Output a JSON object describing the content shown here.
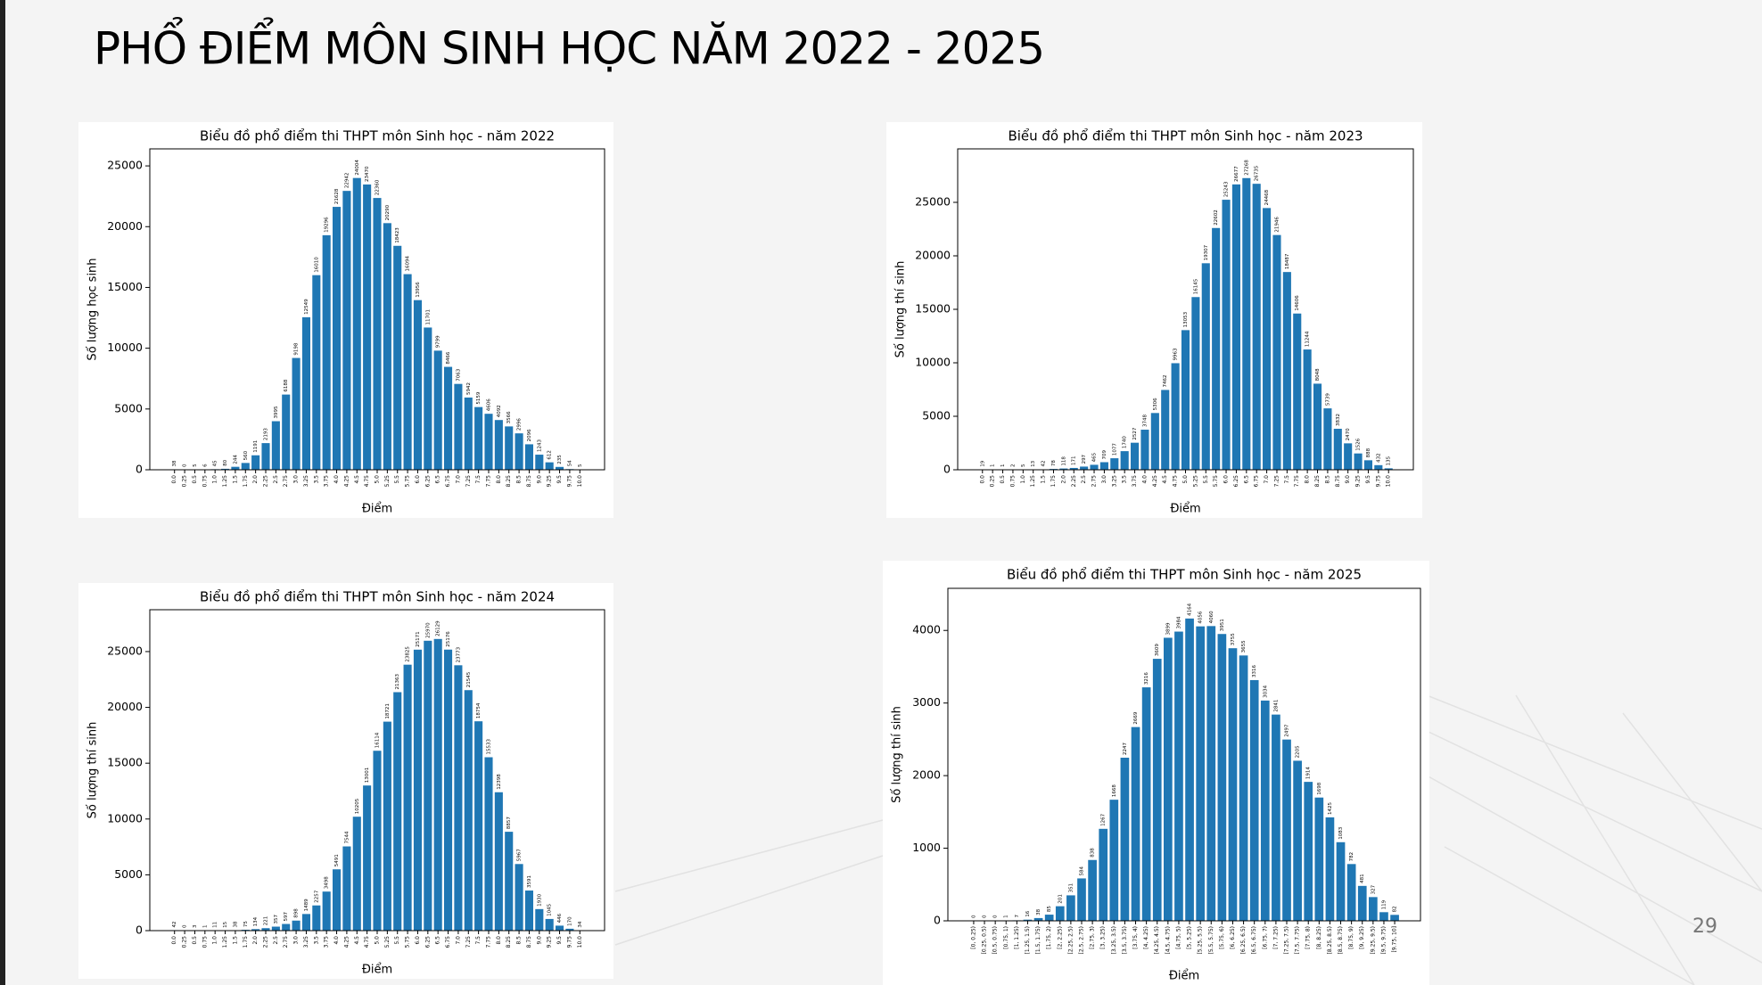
{
  "title": "PHỔ ĐIỂM MÔN SINH HỌC NĂM 2022 - 2025",
  "page_number": 29,
  "chart_data": [
    {
      "type": "bar",
      "title": "Biểu đồ phổ điểm thi THPT môn Sinh học - năm 2022",
      "x_label": "Điểm",
      "y_label": "Số lượng học sinh",
      "color": "#1f77b4",
      "categories": [
        "0.0",
        "0.25",
        "0.5",
        "0.75",
        "1.0",
        "1.25",
        "1.5",
        "1.75",
        "2.0",
        "2.25",
        "2.5",
        "2.75",
        "3.0",
        "3.25",
        "3.5",
        "3.75",
        "4.0",
        "4.25",
        "4.5",
        "4.75",
        "5.0",
        "5.25",
        "5.5",
        "5.75",
        "6.0",
        "6.25",
        "6.5",
        "6.75",
        "7.0",
        "7.25",
        "7.5",
        "7.75",
        "8.0",
        "8.25",
        "8.5",
        "8.75",
        "9.0",
        "9.25",
        "9.5",
        "9.75",
        "10.0"
      ],
      "values": [
        38,
        0,
        5,
        6,
        45,
        80,
        244,
        560,
        1191,
        2193,
        3995,
        6188,
        9198,
        12549,
        16010,
        19296,
        21628,
        22942,
        24004,
        23470,
        22360,
        20290,
        18423,
        16094,
        13956,
        11701,
        9799,
        8466,
        7063,
        5942,
        5159,
        4606,
        4092,
        3566,
        2996,
        2096,
        1243,
        612,
        235,
        54,
        5
      ],
      "ylim": [
        0,
        26400
      ],
      "yticks": [
        0,
        5000,
        10000,
        15000,
        20000,
        25000
      ]
    },
    {
      "type": "bar",
      "title": "Biểu đồ phổ điểm thi THPT môn Sinh học - năm 2023",
      "x_label": "Điểm",
      "y_label": "Số lượng thí sinh",
      "color": "#1f77b4",
      "categories": [
        "0.0",
        "0.25",
        "0.5",
        "0.75",
        "1.0",
        "1.25",
        "1.5",
        "1.75",
        "2.0",
        "2.25",
        "2.5",
        "2.75",
        "3.0",
        "3.25",
        "3.5",
        "3.75",
        "4.0",
        "4.25",
        "4.5",
        "4.75",
        "5.0",
        "5.25",
        "5.5",
        "5.75",
        "6.0",
        "6.25",
        "6.5",
        "6.75",
        "7.0",
        "7.25",
        "7.5",
        "7.75",
        "8.0",
        "8.25",
        "8.5",
        "8.75",
        "9.0",
        "9.25",
        "9.5",
        "9.75",
        "10.0"
      ],
      "values": [
        19,
        1,
        1,
        2,
        5,
        13,
        42,
        78,
        118,
        171,
        297,
        465,
        709,
        1077,
        1740,
        2527,
        3748,
        5306,
        7462,
        9963,
        13053,
        16145,
        19307,
        22602,
        25243,
        26677,
        27268,
        26735,
        24468,
        21946,
        18487,
        14606,
        11244,
        8048,
        5739,
        3832,
        2470,
        1526,
        888,
        432,
        135
      ],
      "ylim": [
        0,
        30000
      ],
      "yticks": [
        0,
        5000,
        10000,
        15000,
        20000,
        25000
      ]
    },
    {
      "type": "bar",
      "title": "Biểu đồ phổ điểm thi THPT môn Sinh học - năm 2024",
      "x_label": "Điểm",
      "y_label": "Số lượng thí sinh",
      "color": "#1f77b4",
      "categories": [
        "0.0",
        "0.25",
        "0.5",
        "0.75",
        "1.0",
        "1.25",
        "1.5",
        "1.75",
        "2.0",
        "2.25",
        "2.5",
        "2.75",
        "3.0",
        "3.25",
        "3.5",
        "3.75",
        "4.0",
        "4.25",
        "4.5",
        "4.75",
        "5.0",
        "5.25",
        "5.5",
        "5.75",
        "6.0",
        "6.25",
        "6.5",
        "6.75",
        "7.0",
        "7.25",
        "7.5",
        "7.75",
        "8.0",
        "8.25",
        "8.5",
        "8.75",
        "9.0",
        "9.25",
        "9.5",
        "9.75",
        "10.0"
      ],
      "values": [
        42,
        0,
        3,
        1,
        11,
        15,
        38,
        75,
        134,
        221,
        357,
        597,
        898,
        1489,
        2257,
        3498,
        5491,
        7544,
        10205,
        13001,
        16114,
        18721,
        21363,
        23825,
        25171,
        25970,
        26129,
        25176,
        23773,
        21545,
        18754,
        15533,
        12398,
        8857,
        5967,
        3591,
        1930,
        1045,
        446,
        170,
        34
      ],
      "ylim": [
        0,
        28750
      ],
      "yticks": [
        0,
        5000,
        10000,
        15000,
        20000,
        25000
      ]
    },
    {
      "type": "bar",
      "title": "Biểu đồ phổ điểm thi THPT môn Sinh học - năm 2025",
      "x_label": "Điểm",
      "y_label": "Số lượng thí sinh",
      "color": "#1f77b4",
      "categories": [
        "[0, 0.25)",
        "[0.25, 0.5)",
        "[0.5, 0.75)",
        "[0.75, 1)",
        "[1, 1.25)",
        "[1.25, 1.5)",
        "[1.5, 1.75)",
        "[1.75, 2)",
        "[2, 2.25)",
        "[2.25, 2.5)",
        "[2.5, 2.75)",
        "[2.75, 3)",
        "[3, 3.25)",
        "[3.25, 3.5)",
        "[3.5, 3.75)",
        "[3.75, 4)",
        "[4, 4.25)",
        "[4.25, 4.5)",
        "[4.5, 4.75)",
        "[4.75, 5)",
        "[5, 5.25)",
        "[5.25, 5.5)",
        "[5.5, 5.75)",
        "[5.75, 6)",
        "[6, 6.25)",
        "[6.25, 6.5)",
        "[6.5, 6.75)",
        "[6.75, 7)",
        "[7, 7.25)",
        "[7.25, 7.5)",
        "[7.5, 7.75)",
        "[7.75, 8)",
        "[8, 8.25)",
        "[8.25, 8.5)",
        "[8.5, 8.75)",
        "[8.75, 9)",
        "[9, 9.25)",
        "[9.25, 9.5)",
        "[9.5, 9.75)",
        "[9.75, 10]"
      ],
      "values": [
        0,
        0,
        0,
        1,
        7,
        16,
        38,
        85,
        201,
        351,
        584,
        838,
        1267,
        1668,
        2247,
        2669,
        3216,
        3609,
        3899,
        3984,
        4164,
        4056,
        4060,
        3951,
        3755,
        3655,
        3316,
        3034,
        2841,
        2497,
        2205,
        1914,
        1698,
        1425,
        1083,
        782,
        481,
        327,
        119,
        82
      ],
      "ylim": [
        0,
        4580
      ],
      "yticks": [
        0,
        1000,
        2000,
        3000,
        4000
      ]
    }
  ]
}
